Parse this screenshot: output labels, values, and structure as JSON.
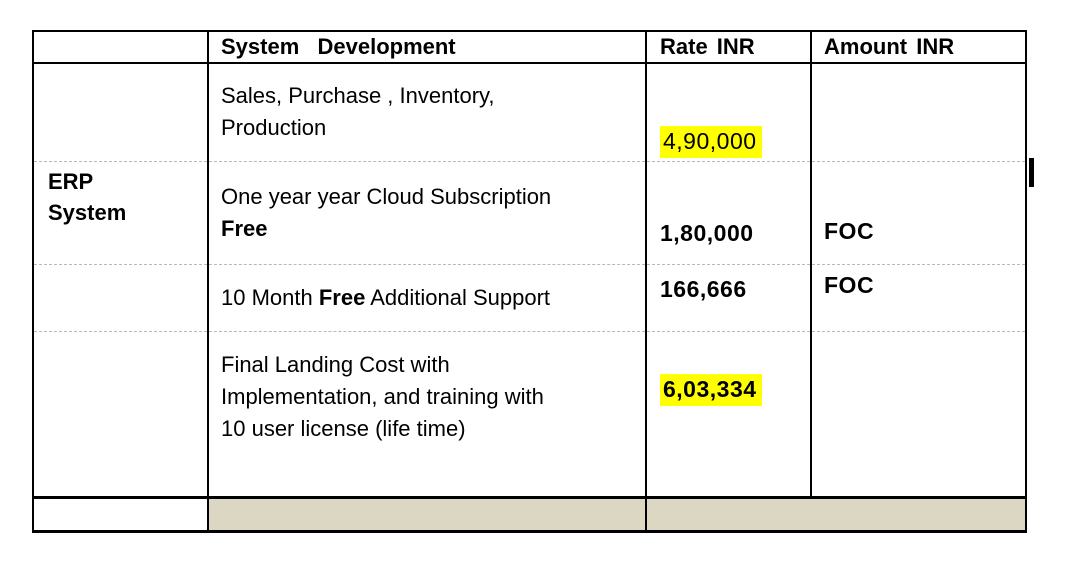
{
  "table": {
    "headers": {
      "system_development": "System  Development",
      "rate_inr": "Rate INR",
      "amount_inr": "Amount INR"
    },
    "row_group_label": {
      "line1": "ERP",
      "line2": "System"
    },
    "rows": [
      {
        "description_line1": "Sales, Purchase , Inventory,",
        "description_line2": "Production",
        "rate": "4,90,000",
        "rate_highlighted": true,
        "amount": ""
      },
      {
        "description_line1": "One year year Cloud Subscription",
        "description_line2_bold": "Free",
        "rate": "1,80,000",
        "amount": "FOC"
      },
      {
        "description_prefix": "10 Month ",
        "description_bold": "Free",
        "description_suffix": " Additional Support",
        "rate": "166,666",
        "amount": "FOC"
      },
      {
        "description_line1": "Final Landing Cost with",
        "description_line2": "Implementation, and training with",
        "description_line3": "10 user license (life time)",
        "rate": "6,03,334",
        "rate_highlighted": true,
        "amount": ""
      }
    ],
    "colors": {
      "highlight": "#ffff00",
      "bottom_row_fill": "#dcd7c2",
      "dashed_divider": "#b8b8b8",
      "border": "#000000"
    }
  }
}
